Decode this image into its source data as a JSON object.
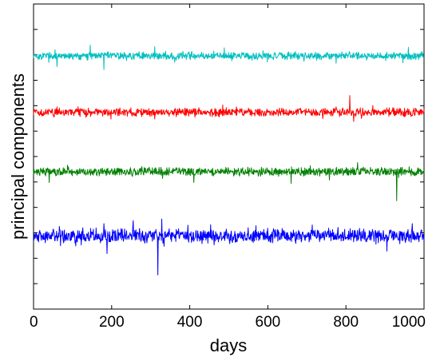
{
  "chart_data": {
    "type": "line",
    "title": "",
    "xlabel": "days",
    "ylabel": "principal components",
    "xlim": [
      0,
      1000
    ],
    "xticks": [
      0,
      200,
      400,
      600,
      800,
      1000
    ],
    "yticks_count": 12,
    "y_tick_labels": "none",
    "grid": false,
    "legend": "none",
    "x_points": 1000,
    "series": [
      {
        "color": "#00bfbf",
        "baseline_fraction": 0.83,
        "noise_amplitude": 0.015,
        "spikes": [
          {
            "x": 20,
            "dy": -0.012
          },
          {
            "x": 55,
            "dy": 0.02
          },
          {
            "x": 60,
            "dy": -0.035
          },
          {
            "x": 145,
            "dy": 0.035
          },
          {
            "x": 180,
            "dy": -0.045
          },
          {
            "x": 310,
            "dy": 0.03
          },
          {
            "x": 960,
            "dy": 0.028
          }
        ]
      },
      {
        "color": "#ff0000",
        "baseline_fraction": 0.645,
        "noise_amplitude": 0.016,
        "spikes": [
          {
            "x": 60,
            "dy": 0.018
          },
          {
            "x": 310,
            "dy": -0.022
          },
          {
            "x": 520,
            "dy": 0.018
          },
          {
            "x": 810,
            "dy": 0.055
          },
          {
            "x": 820,
            "dy": -0.03
          },
          {
            "x": 920,
            "dy": 0.015
          }
        ]
      },
      {
        "color": "#008000",
        "baseline_fraction": 0.45,
        "noise_amplitude": 0.016,
        "spikes": [
          {
            "x": 40,
            "dy": -0.035
          },
          {
            "x": 330,
            "dy": -0.022
          },
          {
            "x": 410,
            "dy": -0.035
          },
          {
            "x": 660,
            "dy": -0.038
          },
          {
            "x": 830,
            "dy": 0.03
          },
          {
            "x": 930,
            "dy": -0.095
          }
        ]
      },
      {
        "color": "#0000ff",
        "baseline_fraction": 0.24,
        "noise_amplitude": 0.027,
        "spikes": [
          {
            "x": 180,
            "dy": 0.04
          },
          {
            "x": 188,
            "dy": -0.058
          },
          {
            "x": 255,
            "dy": 0.05
          },
          {
            "x": 318,
            "dy": -0.128
          },
          {
            "x": 328,
            "dy": 0.055
          },
          {
            "x": 395,
            "dy": 0.035
          },
          {
            "x": 600,
            "dy": 0.025
          },
          {
            "x": 905,
            "dy": -0.05
          },
          {
            "x": 970,
            "dy": 0.04
          }
        ]
      }
    ]
  }
}
